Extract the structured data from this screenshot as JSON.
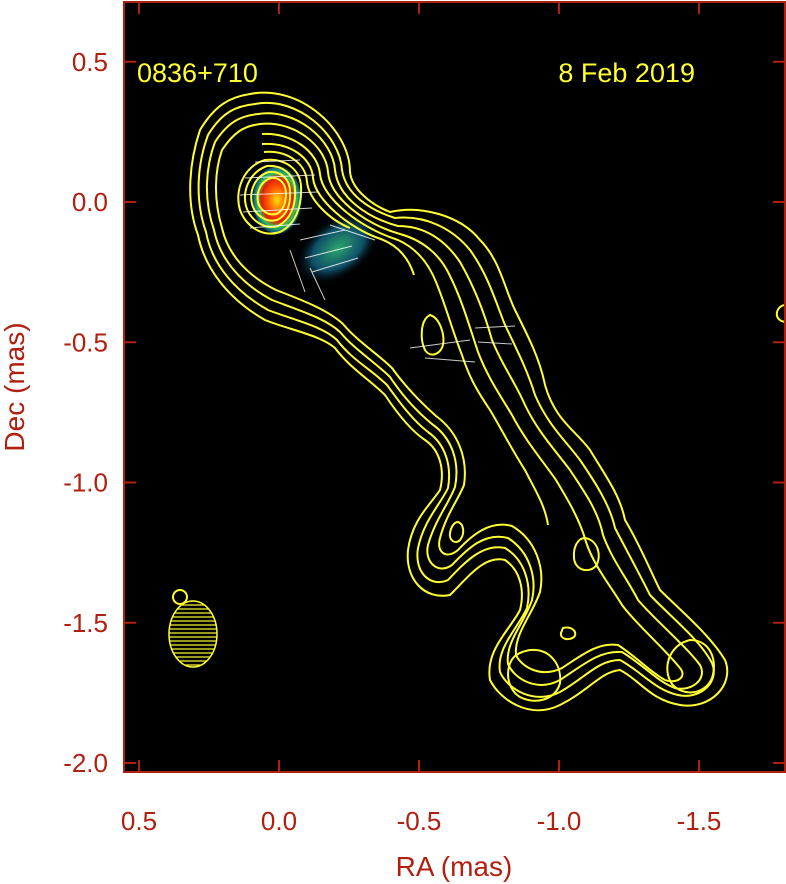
{
  "chart_data": {
    "type": "contour",
    "xlabel": "RA (mas)",
    "ylabel": "Dec (mas)",
    "xlim": [
      0.5,
      -1.8
    ],
    "ylim": [
      -2.05,
      0.72
    ],
    "x_ticks": [
      0.5,
      0.0,
      -0.5,
      -1.0,
      -1.5
    ],
    "x_tick_labels": [
      "0.5",
      "0.0",
      "-0.5",
      "-1.0",
      "-1.5"
    ],
    "y_ticks": [
      0.5,
      0.0,
      -0.5,
      -1.0,
      -1.5,
      -2.0
    ],
    "y_tick_labels": [
      "0.5",
      "0.0",
      "-0.5",
      "-1.0",
      "-1.5",
      "-2.0"
    ],
    "annotations": {
      "source_name": "0836+710",
      "date": "8 Feb 2019"
    },
    "core_position": [
      0.0,
      0.0
    ],
    "beam": {
      "center": [
        0.31,
        -1.57
      ],
      "major_axis_mas": 0.24,
      "minor_axis_mas": 0.17,
      "position_angle_deg": 0
    },
    "colors": {
      "background": "#000000",
      "contours": "#ffff33",
      "axes": "#b02010",
      "core_peak": "#ff2a00"
    }
  }
}
